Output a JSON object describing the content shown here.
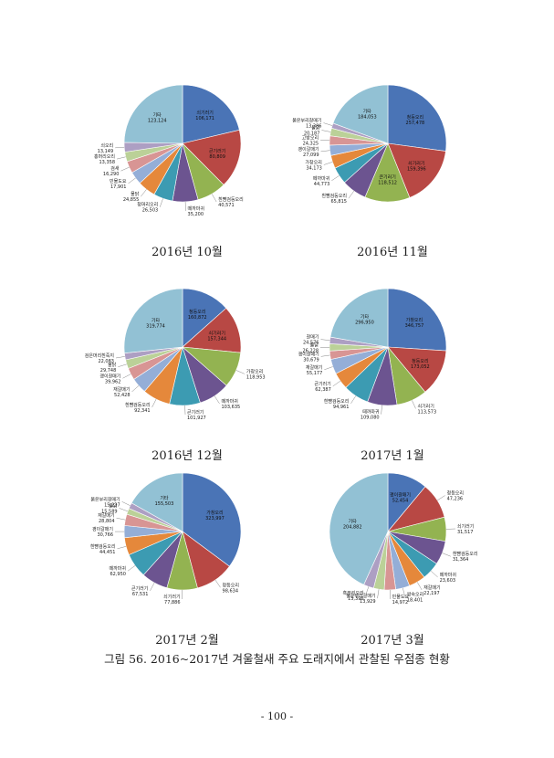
{
  "caption": "그림 56. 2016~2017년 겨울철새 주요 도래지에서 관찰된 우점종 현황",
  "page_number": "- 100 -",
  "chart_data": [
    {
      "type": "pie",
      "title": "2016년 10월",
      "slices": [
        {
          "label": "쇠기러기",
          "value": 106171,
          "value_text": "106,171",
          "color": "#4a74b6"
        },
        {
          "label": "큰기러기",
          "value": 80809,
          "value_text": "80,809",
          "color": "#b84844"
        },
        {
          "label": "흰뺨검둥오리",
          "value": 40571,
          "value_text": "40,571",
          "color": "#93b351"
        },
        {
          "label": "떼까마귀",
          "value": 35200,
          "value_text": "35,200",
          "color": "#6c5490"
        },
        {
          "label": "청머리오리",
          "value": 26503,
          "value_text": "26,503",
          "color": "#3c9bb2"
        },
        {
          "label": "물닭",
          "value": 24855,
          "value_text": "24,855",
          "color": "#e5883b"
        },
        {
          "label": "민물도요",
          "value": 17901,
          "value_text": "17,901",
          "color": "#94aed7"
        },
        {
          "label": "검새",
          "value": 16290,
          "value_text": "16,290",
          "color": "#d89594"
        },
        {
          "label": "홍머리오리",
          "value": 13358,
          "value_text": "13,358",
          "color": "#bbd198"
        },
        {
          "label": "쇠오리",
          "value": 13149,
          "value_text": "13,149",
          "color": "#ad9fc3"
        },
        {
          "label": "기타",
          "value": 123124,
          "value_text": "123,124",
          "color": "#92c1d4"
        }
      ]
    },
    {
      "type": "pie",
      "title": "2016년 11월",
      "slices": [
        {
          "label": "청둥오리",
          "value": 257478,
          "value_text": "257,478",
          "color": "#4a74b6"
        },
        {
          "label": "쇠기러기",
          "value": 159396,
          "value_text": "159,396",
          "color": "#b84844"
        },
        {
          "label": "큰기러기",
          "value": 118512,
          "value_text": "118,512",
          "color": "#93b351"
        },
        {
          "label": "흰뺨검둥오리",
          "value": 65815,
          "value_text": "65,815",
          "color": "#6c5490"
        },
        {
          "label": "떼까마귀",
          "value": 44773,
          "value_text": "44,773",
          "color": "#3c9bb2"
        },
        {
          "label": "가창오리",
          "value": 34173,
          "value_text": "34,173",
          "color": "#e5883b"
        },
        {
          "label": "괭이갈매기",
          "value": 27099,
          "value_text": "27,099",
          "color": "#94aed7"
        },
        {
          "label": "고방오리",
          "value": 24325,
          "value_text": "24,325",
          "color": "#d89594"
        },
        {
          "label": "물닭",
          "value": 20187,
          "value_text": "20,187",
          "color": "#bbd198"
        },
        {
          "label": "붉은부리갈매기",
          "value": 13386,
          "value_text": "13,386",
          "color": "#ad9fc3"
        },
        {
          "label": "기타",
          "value": 184053,
          "value_text": "184,053",
          "color": "#92c1d4"
        }
      ]
    },
    {
      "type": "pie",
      "title": "2016년 12월",
      "slices": [
        {
          "label": "청둥오리",
          "value": 160872,
          "value_text": "160,872",
          "color": "#4a74b6"
        },
        {
          "label": "쇠기러기",
          "value": 157344,
          "value_text": "157,344",
          "color": "#b84844"
        },
        {
          "label": "가창오리",
          "value": 118953,
          "value_text": "118,953",
          "color": "#93b351"
        },
        {
          "label": "떼까마귀",
          "value": 103635,
          "value_text": "103,635",
          "color": "#6c5490"
        },
        {
          "label": "큰기러기",
          "value": 101927,
          "value_text": "101,927",
          "color": "#3c9bb2"
        },
        {
          "label": "흰뺨검둥오리",
          "value": 92341,
          "value_text": "92,341",
          "color": "#e5883b"
        },
        {
          "label": "재갈매기",
          "value": 52428,
          "value_text": "52,428",
          "color": "#94aed7"
        },
        {
          "label": "괭이갈매기",
          "value": 39962,
          "value_text": "39,962",
          "color": "#d89594"
        },
        {
          "label": "물닭",
          "value": 29748,
          "value_text": "29,748",
          "color": "#bbd198"
        },
        {
          "label": "검은머리흰죽지",
          "value": 22083,
          "value_text": "22,083",
          "color": "#ad9fc3"
        },
        {
          "label": "기타",
          "value": 319774,
          "value_text": "319,774",
          "color": "#92c1d4"
        }
      ]
    },
    {
      "type": "pie",
      "title": "2017년 1월",
      "slices": [
        {
          "label": "가창오리",
          "value": 346757,
          "value_text": "346,757",
          "color": "#4a74b6"
        },
        {
          "label": "청둥오리",
          "value": 173052,
          "value_text": "173,052",
          "color": "#b84844"
        },
        {
          "label": "쇠기러기",
          "value": 113573,
          "value_text": "113,573",
          "color": "#93b351"
        },
        {
          "label": "떼까마귀",
          "value": 109080,
          "value_text": "109,080",
          "color": "#6c5490"
        },
        {
          "label": "흰뺨검둥오리",
          "value": 94961,
          "value_text": "94,961",
          "color": "#3c9bb2"
        },
        {
          "label": "큰기러기",
          "value": 62387,
          "value_text": "62,387",
          "color": "#e5883b"
        },
        {
          "label": "재갈매기",
          "value": 55177,
          "value_text": "55,177",
          "color": "#94aed7"
        },
        {
          "label": "괭이갈매기",
          "value": 30679,
          "value_text": "30,679",
          "color": "#d89594"
        },
        {
          "label": "물닭",
          "value": 26228,
          "value_text": "26,228",
          "color": "#bbd198"
        },
        {
          "label": "갈매기",
          "value": 24576,
          "value_text": "24,576",
          "color": "#ad9fc3"
        },
        {
          "label": "기타",
          "value": 296950,
          "value_text": "296,950",
          "color": "#92c1d4"
        }
      ]
    },
    {
      "type": "pie",
      "title": "2017년 2월",
      "slices": [
        {
          "label": "가창오리",
          "value": 323997,
          "value_text": "323,997",
          "color": "#4a74b6"
        },
        {
          "label": "청둥오리",
          "value": 98634,
          "value_text": "98,634",
          "color": "#b84844"
        },
        {
          "label": "쇠기러기",
          "value": 77886,
          "value_text": "77,886",
          "color": "#93b351"
        },
        {
          "label": "큰기러기",
          "value": 67531,
          "value_text": "67,531",
          "color": "#6c5490"
        },
        {
          "label": "떼까마귀",
          "value": 62950,
          "value_text": "62,950",
          "color": "#3c9bb2"
        },
        {
          "label": "흰뺨검둥오리",
          "value": 44451,
          "value_text": "44,451",
          "color": "#e5883b"
        },
        {
          "label": "괭이갈매기",
          "value": 30766,
          "value_text": "30,766",
          "color": "#94aed7"
        },
        {
          "label": "재갈매기",
          "value": 28804,
          "value_text": "28,804",
          "color": "#d89594"
        },
        {
          "label": "물닭",
          "value": 15589,
          "value_text": "15,589",
          "color": "#bbd198"
        },
        {
          "label": "붉은부리갈매기",
          "value": 15237,
          "value_text": "15,237",
          "color": "#ad9fc3"
        },
        {
          "label": "기타",
          "value": 155503,
          "value_text": "155,503",
          "color": "#92c1d4"
        }
      ]
    },
    {
      "type": "pie",
      "title": "2017년 3월",
      "slices": [
        {
          "label": "괭이갈매기",
          "value": 52454,
          "value_text": "52,454",
          "color": "#4a74b6"
        },
        {
          "label": "청둥오리",
          "value": 47236,
          "value_text": "47,236",
          "color": "#b84844"
        },
        {
          "label": "쇠기러기",
          "value": 31517,
          "value_text": "31,517",
          "color": "#93b351"
        },
        {
          "label": "흰뺨검둥오리",
          "value": 31364,
          "value_text": "31,364",
          "color": "#6c5490"
        },
        {
          "label": "떼까마귀",
          "value": 23603,
          "value_text": "23,603",
          "color": "#3c9bb2"
        },
        {
          "label": "재갈매기",
          "value": 22197,
          "value_text": "22,197",
          "color": "#e5883b"
        },
        {
          "label": "왕숙오리",
          "value": 18401,
          "value_text": "18,401",
          "color": "#94aed7"
        },
        {
          "label": "민물도요",
          "value": 14972,
          "value_text": "14,972",
          "color": "#d89594"
        },
        {
          "label": "붉은부리갈매기",
          "value": 13929,
          "value_text": "13,929",
          "color": "#bbd198"
        },
        {
          "label": "흑부리오리",
          "value": 13396,
          "value_text": "13,396",
          "color": "#ad9fc3"
        },
        {
          "label": "기타",
          "value": 204882,
          "value_text": "204,882",
          "color": "#92c1d4"
        }
      ]
    }
  ]
}
